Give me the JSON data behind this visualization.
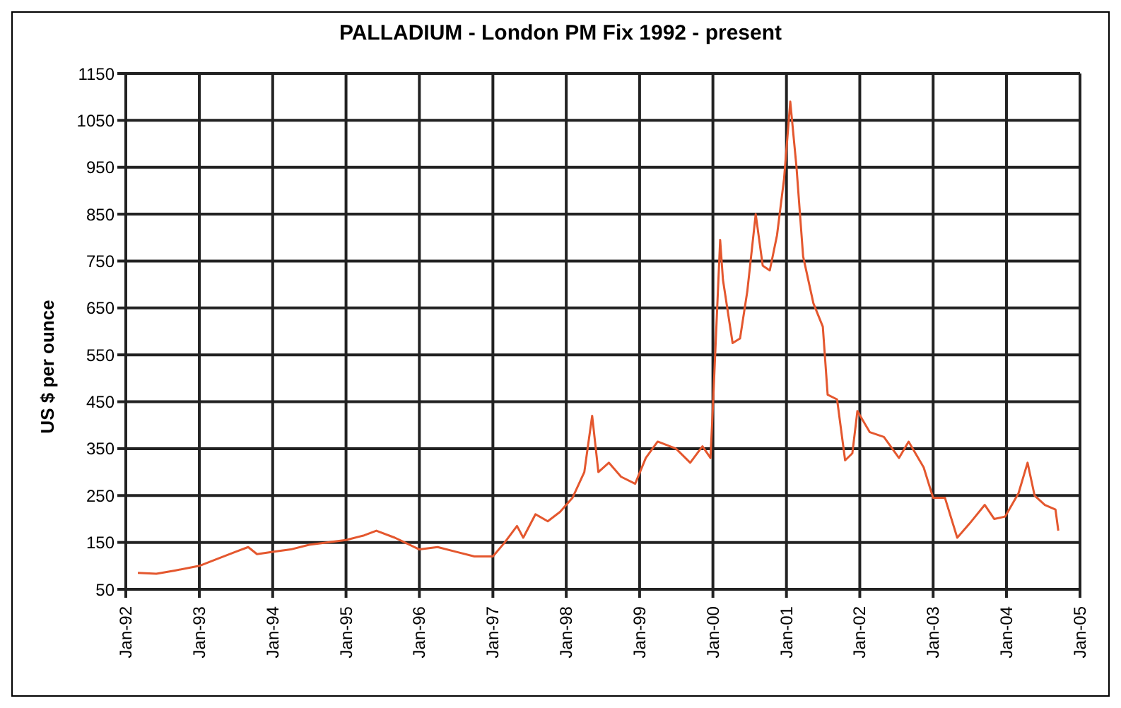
{
  "chart_data": {
    "type": "line",
    "title": "PALLADIUM - London PM Fix 1992 - present",
    "ylabel": "US $ per ounce",
    "x": [
      "1992-03-01",
      "1992-06-01",
      "1992-09-01",
      "1993-01-01",
      "1993-04-01",
      "1993-07-01",
      "1993-09-01",
      "1993-10-15",
      "1994-01-01",
      "1994-04-01",
      "1994-07-01",
      "1995-01-01",
      "1995-04-01",
      "1995-06-01",
      "1995-09-01",
      "1996-01-01",
      "1996-04-01",
      "1996-07-01",
      "1996-10-01",
      "1997-01-01",
      "1997-03-01",
      "1997-05-01",
      "1997-06-01",
      "1997-08-01",
      "1997-10-01",
      "1997-12-01",
      "1998-02-01",
      "1998-04-01",
      "1998-05-10",
      "1998-06-10",
      "1998-08-01",
      "1998-10-01",
      "1998-12-10",
      "1999-02-01",
      "1999-04-01",
      "1999-07-01",
      "1999-09-10",
      "1999-11-10",
      "1999-12-20",
      "2000-01-01",
      "2000-02-06",
      "2000-02-20",
      "2000-04-08",
      "2000-05-15",
      "2000-06-20",
      "2000-08-01",
      "2000-09-05",
      "2000-10-10",
      "2000-11-15",
      "2000-12-20",
      "2001-01-20",
      "2001-02-20",
      "2001-03-25",
      "2001-05-15",
      "2001-07-01",
      "2001-07-25",
      "2001-09-10",
      "2001-10-20",
      "2001-11-25",
      "2001-12-20",
      "2002-02-20",
      "2002-05-01",
      "2002-07-15",
      "2002-09-01",
      "2002-11-15",
      "2003-01-01",
      "2003-03-01",
      "2003-05-01",
      "2003-07-01",
      "2003-09-15",
      "2003-11-01",
      "2003-12-25",
      "2004-03-01",
      "2004-04-15",
      "2004-05-20",
      "2004-07-10",
      "2004-09-01",
      "2004-09-15"
    ],
    "series": [
      {
        "color": "#e4572e",
        "values": [
          85,
          83,
          90,
          100,
          115,
          130,
          140,
          125,
          130,
          135,
          145,
          155,
          165,
          175,
          160,
          135,
          140,
          130,
          120,
          120,
          150,
          185,
          160,
          210,
          195,
          215,
          245,
          300,
          420,
          300,
          320,
          290,
          275,
          330,
          365,
          350,
          320,
          355,
          330,
          440,
          795,
          710,
          575,
          585,
          685,
          850,
          740,
          730,
          805,
          925,
          1090,
          950,
          760,
          660,
          610,
          465,
          455,
          325,
          340,
          430,
          385,
          375,
          330,
          365,
          310,
          245,
          245,
          160,
          190,
          230,
          200,
          205,
          255,
          320,
          250,
          230,
          220,
          175
        ]
      }
    ],
    "xlim": [
      "1992-01-01",
      "2005-01-01"
    ],
    "xticks": [
      {
        "value": "1992-01-01",
        "label": "Jan-92"
      },
      {
        "value": "1993-01-01",
        "label": "Jan-93"
      },
      {
        "value": "1994-01-01",
        "label": "Jan-94"
      },
      {
        "value": "1995-01-01",
        "label": "Jan-95"
      },
      {
        "value": "1996-01-01",
        "label": "Jan-96"
      },
      {
        "value": "1997-01-01",
        "label": "Jan-97"
      },
      {
        "value": "1998-01-01",
        "label": "Jan-98"
      },
      {
        "value": "1999-01-01",
        "label": "Jan-99"
      },
      {
        "value": "2000-01-01",
        "label": "Jan-00"
      },
      {
        "value": "2001-01-01",
        "label": "Jan-01"
      },
      {
        "value": "2002-01-01",
        "label": "Jan-02"
      },
      {
        "value": "2003-01-01",
        "label": "Jan-03"
      },
      {
        "value": "2004-01-01",
        "label": "Jan-04"
      },
      {
        "value": "2005-01-01",
        "label": "Jan-05"
      }
    ],
    "ylim": [
      50,
      1150
    ],
    "yticks": [
      50,
      150,
      250,
      350,
      450,
      550,
      650,
      750,
      850,
      950,
      1050,
      1150
    ],
    "grid": true,
    "legend": false,
    "marker": "none",
    "line_style": "solid"
  }
}
